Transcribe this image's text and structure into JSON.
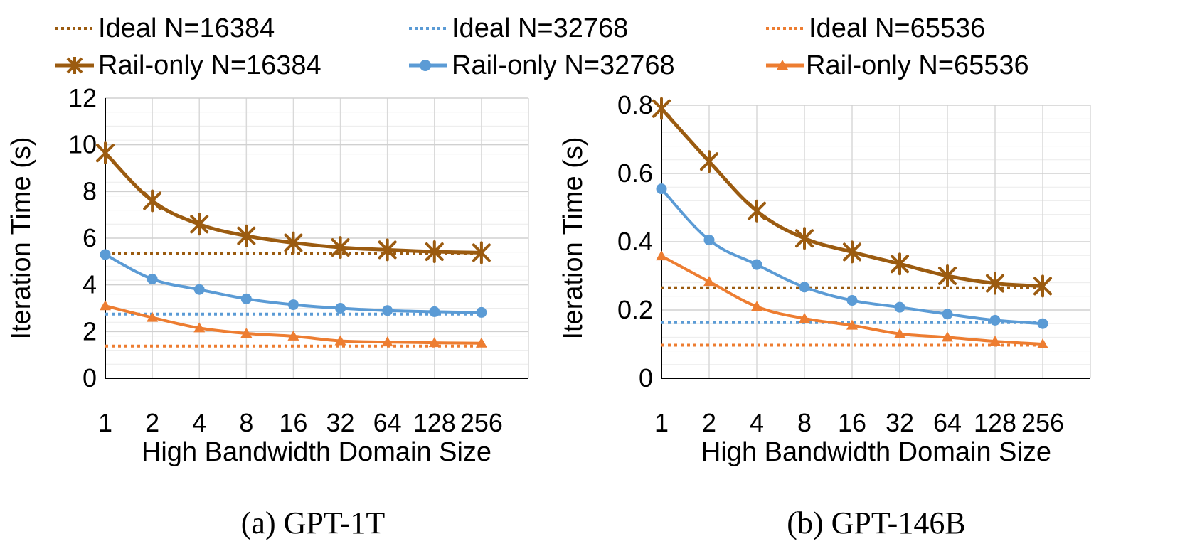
{
  "legend": [
    {
      "label": "Ideal N=16384",
      "color": "#9B5B10",
      "style": "dotted",
      "marker": "none"
    },
    {
      "label": "Ideal N=32768",
      "color": "#5B9BD5",
      "style": "dotted",
      "marker": "none"
    },
    {
      "label": "Ideal N=65536",
      "color": "#ED7D31",
      "style": "dotted",
      "marker": "none"
    },
    {
      "label": "Rail-only N=16384",
      "color": "#9B5B10",
      "style": "solid",
      "marker": "star"
    },
    {
      "label": "Rail-only N=32768",
      "color": "#5B9BD5",
      "style": "solid",
      "marker": "circle"
    },
    {
      "label": "Rail-only N=65536",
      "color": "#ED7D31",
      "style": "solid",
      "marker": "triangle"
    }
  ],
  "chart_data": [
    {
      "type": "line",
      "title": "(a) GPT-1T",
      "xlabel": "High Bandwidth Domain Size",
      "ylabel": "Iteration Time (s)",
      "categories": [
        "1",
        "2",
        "4",
        "8",
        "16",
        "32",
        "64",
        "128",
        "256"
      ],
      "ylim": [
        0,
        12
      ],
      "yticks": [
        "0",
        "2",
        "4",
        "6",
        "8",
        "10",
        "12"
      ],
      "ytick_values": [
        0,
        2,
        4,
        6,
        8,
        10,
        12
      ],
      "series": [
        {
          "name": "Ideal N=16384",
          "values": [
            5.35,
            5.35,
            5.35,
            5.35,
            5.35,
            5.35,
            5.35,
            5.35,
            5.35
          ]
        },
        {
          "name": "Ideal N=32768",
          "values": [
            2.75,
            2.75,
            2.75,
            2.75,
            2.75,
            2.75,
            2.75,
            2.75,
            2.75
          ]
        },
        {
          "name": "Ideal N=65536",
          "values": [
            1.38,
            1.38,
            1.38,
            1.38,
            1.38,
            1.38,
            1.38,
            1.38,
            1.38
          ]
        },
        {
          "name": "Rail-only N=16384",
          "values": [
            9.65,
            7.6,
            6.6,
            6.1,
            5.8,
            5.6,
            5.5,
            5.42,
            5.38
          ]
        },
        {
          "name": "Rail-only N=32768",
          "values": [
            5.3,
            4.25,
            3.8,
            3.4,
            3.15,
            3.0,
            2.9,
            2.85,
            2.82
          ]
        },
        {
          "name": "Rail-only N=65536",
          "values": [
            3.1,
            2.6,
            2.15,
            1.92,
            1.8,
            1.6,
            1.55,
            1.52,
            1.5
          ]
        }
      ]
    },
    {
      "type": "line",
      "title": "(b) GPT-146B",
      "xlabel": "High Bandwidth Domain Size",
      "ylabel": "Iteration Time (s)",
      "categories": [
        "1",
        "2",
        "4",
        "8",
        "16",
        "32",
        "64",
        "128",
        "256"
      ],
      "ylim": [
        0,
        0.8
      ],
      "yticks": [
        "0",
        "0.2",
        "0.4",
        "0.6",
        "0.8"
      ],
      "ytick_values": [
        0,
        0.2,
        0.4,
        0.6,
        0.8
      ],
      "series": [
        {
          "name": "Ideal N=16384",
          "values": [
            0.265,
            0.265,
            0.265,
            0.265,
            0.265,
            0.265,
            0.265,
            0.265,
            0.265
          ]
        },
        {
          "name": "Ideal N=32768",
          "values": [
            0.163,
            0.163,
            0.163,
            0.163,
            0.163,
            0.163,
            0.163,
            0.163,
            0.163
          ]
        },
        {
          "name": "Ideal N=65536",
          "values": [
            0.097,
            0.097,
            0.097,
            0.097,
            0.097,
            0.097,
            0.097,
            0.097,
            0.097
          ]
        },
        {
          "name": "Rail-only N=16384",
          "values": [
            0.79,
            0.635,
            0.49,
            0.41,
            0.37,
            0.335,
            0.3,
            0.278,
            0.27
          ]
        },
        {
          "name": "Rail-only N=32768",
          "values": [
            0.555,
            0.405,
            0.333,
            0.267,
            0.228,
            0.208,
            0.188,
            0.17,
            0.16
          ]
        },
        {
          "name": "Rail-only N=65536",
          "values": [
            0.358,
            0.283,
            0.21,
            0.175,
            0.155,
            0.13,
            0.12,
            0.108,
            0.1
          ]
        }
      ]
    }
  ]
}
